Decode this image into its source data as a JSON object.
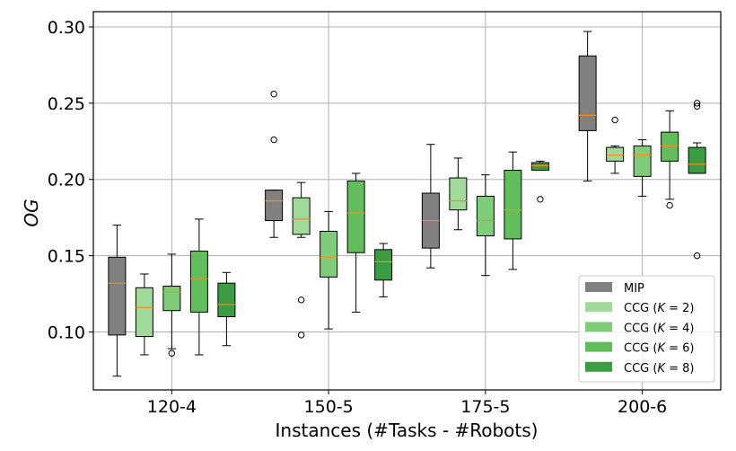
{
  "chart_data": {
    "type": "box",
    "xlabel": "Instances (#Tasks - #Robots)",
    "ylabel": "OG",
    "ylim": [
      0.062,
      0.31
    ],
    "yticks": [
      "0.10",
      "0.15",
      "0.20",
      "0.25",
      "0.30"
    ],
    "ytick_values": [
      0.1,
      0.15,
      0.2,
      0.25,
      0.3
    ],
    "categories": [
      "120-4",
      "150-5",
      "175-5",
      "200-6"
    ],
    "grid": true,
    "legend_position": "lower-right",
    "series": [
      {
        "name": "MIP",
        "color": "#808080",
        "boxes": [
          {
            "whislo": 0.071,
            "q1": 0.098,
            "med": 0.132,
            "q3": 0.149,
            "whishi": 0.17,
            "fliers": []
          },
          {
            "whislo": 0.162,
            "q1": 0.173,
            "med": 0.186,
            "q3": 0.193,
            "whishi": 0.193,
            "fliers": [
              0.226,
              0.256
            ]
          },
          {
            "whislo": 0.142,
            "q1": 0.155,
            "med": 0.173,
            "q3": 0.191,
            "whishi": 0.223,
            "fliers": []
          },
          {
            "whislo": 0.199,
            "q1": 0.232,
            "med": 0.242,
            "q3": 0.281,
            "whishi": 0.297,
            "fliers": []
          }
        ]
      },
      {
        "name": "CCG (K = 2)",
        "color": "#a1d99b",
        "boxes": [
          {
            "whislo": 0.085,
            "q1": 0.097,
            "med": 0.116,
            "q3": 0.129,
            "whishi": 0.138,
            "fliers": []
          },
          {
            "whislo": 0.162,
            "q1": 0.164,
            "med": 0.174,
            "q3": 0.188,
            "whishi": 0.198,
            "fliers": [
              0.098,
              0.121
            ]
          },
          {
            "whislo": 0.167,
            "q1": 0.18,
            "med": 0.186,
            "q3": 0.201,
            "whishi": 0.214,
            "fliers": []
          },
          {
            "whislo": 0.204,
            "q1": 0.212,
            "med": 0.216,
            "q3": 0.221,
            "whishi": 0.222,
            "fliers": [
              0.239
            ]
          }
        ]
      },
      {
        "name": "CCG (K = 4)",
        "color": "#7fcc7a",
        "boxes": [
          {
            "whislo": 0.089,
            "q1": 0.114,
            "med": 0.126,
            "q3": 0.13,
            "whishi": 0.151,
            "fliers": [
              0.086
            ]
          },
          {
            "whislo": 0.102,
            "q1": 0.136,
            "med": 0.149,
            "q3": 0.166,
            "whishi": 0.179,
            "fliers": []
          },
          {
            "whislo": 0.137,
            "q1": 0.163,
            "med": 0.173,
            "q3": 0.189,
            "whishi": 0.203,
            "fliers": []
          },
          {
            "whislo": 0.189,
            "q1": 0.202,
            "med": 0.216,
            "q3": 0.222,
            "whishi": 0.226,
            "fliers": []
          }
        ]
      },
      {
        "name": "CCG (K = 6)",
        "color": "#62bd5c",
        "boxes": [
          {
            "whislo": 0.085,
            "q1": 0.113,
            "med": 0.135,
            "q3": 0.153,
            "whishi": 0.174,
            "fliers": []
          },
          {
            "whislo": 0.113,
            "q1": 0.152,
            "med": 0.178,
            "q3": 0.199,
            "whishi": 0.204,
            "fliers": []
          },
          {
            "whislo": 0.141,
            "q1": 0.161,
            "med": 0.18,
            "q3": 0.206,
            "whishi": 0.218,
            "fliers": []
          },
          {
            "whislo": 0.187,
            "q1": 0.212,
            "med": 0.222,
            "q3": 0.231,
            "whishi": 0.245,
            "fliers": [
              0.183
            ]
          }
        ]
      },
      {
        "name": "CCG (K = 8)",
        "color": "#3a9c43",
        "boxes": [
          {
            "whislo": 0.091,
            "q1": 0.11,
            "med": 0.118,
            "q3": 0.132,
            "whishi": 0.139,
            "fliers": []
          },
          {
            "whislo": 0.123,
            "q1": 0.134,
            "med": 0.146,
            "q3": 0.154,
            "whishi": 0.158,
            "fliers": []
          },
          {
            "whislo": 0.206,
            "q1": 0.206,
            "med": 0.209,
            "q3": 0.211,
            "whishi": 0.212,
            "fliers": [
              0.187
            ]
          },
          {
            "whislo": 0.204,
            "q1": 0.204,
            "med": 0.21,
            "q3": 0.221,
            "whishi": 0.224,
            "fliers": [
              0.15,
              0.248,
              0.25
            ]
          }
        ]
      }
    ],
    "legend": [
      {
        "prefix": "MIP",
        "k": "",
        "color": "#808080"
      },
      {
        "prefix": "CCG (",
        "k": "K",
        "rest": " = 2)",
        "color": "#a1d99b"
      },
      {
        "prefix": "CCG (",
        "k": "K",
        "rest": " = 4)",
        "color": "#7fcc7a"
      },
      {
        "prefix": "CCG (",
        "k": "K",
        "rest": " = 6)",
        "color": "#62bd5c"
      },
      {
        "prefix": "CCG (",
        "k": "K",
        "rest": " = 8)",
        "color": "#3a9c43"
      }
    ],
    "median_color": "#ff8c1a"
  }
}
